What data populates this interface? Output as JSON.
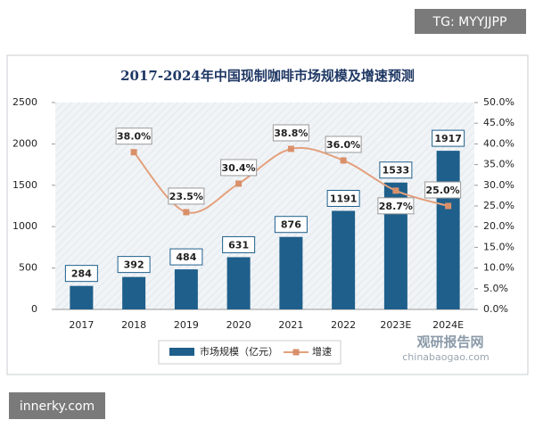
{
  "chart_data": {
    "type": "bar-line",
    "title": "2017-2024年中国现制咖啡市场规模及增速预测",
    "categories": [
      "2017",
      "2018",
      "2019",
      "2020",
      "2021",
      "2022",
      "2023E",
      "2024E"
    ],
    "series": [
      {
        "name": "市场规模（亿元）",
        "type": "bar",
        "axis": "y",
        "color": "#1f5f8b",
        "values": [
          284,
          392,
          484,
          631,
          876,
          1191,
          1533,
          1917
        ]
      },
      {
        "name": "增速",
        "type": "line",
        "axis": "y2",
        "color": "#e3a07c",
        "values": [
          null,
          38.0,
          23.5,
          30.4,
          38.8,
          36.0,
          28.7,
          25.0
        ],
        "value_labels": [
          null,
          "38.0%",
          "23.5%",
          "30.4%",
          "38.8%",
          "36.0%",
          "28.7%",
          "25.0%"
        ]
      }
    ],
    "ylim": [
      0,
      2500
    ],
    "yticks": [
      0,
      500,
      1000,
      1500,
      2000,
      2500
    ],
    "y2lim": [
      0,
      50
    ],
    "y2ticks": [
      {
        "value": 0,
        "label": "0.0%"
      },
      {
        "value": 5,
        "label": "5.0%"
      },
      {
        "value": 10,
        "label": "10.0%"
      },
      {
        "value": 15,
        "label": "15.0%"
      },
      {
        "value": 20,
        "label": "20.0%"
      },
      {
        "value": 25,
        "label": "25.0%"
      },
      {
        "value": 30,
        "label": "30.0%"
      },
      {
        "value": 35,
        "label": "35.0%"
      },
      {
        "value": 40,
        "label": "40.0%"
      },
      {
        "value": 45,
        "label": "45.0%"
      },
      {
        "value": 50,
        "label": "50.0%"
      }
    ],
    "legend": "bottom"
  },
  "watermarks": [
    "TG: MYYJJPP",
    "innerky.com",
    "观研报告网",
    "chinabaogao.com"
  ]
}
